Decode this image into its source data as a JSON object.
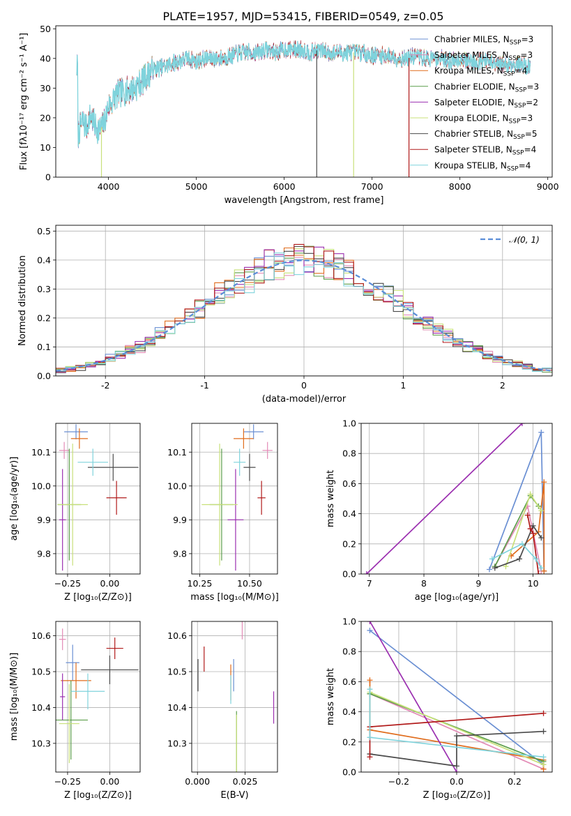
{
  "figure": {
    "title": "PLATE=1957, MJD=53415, FIBERID=0549, z=0.05"
  },
  "legend": [
    {
      "id": "chabrier_miles",
      "label": "Chabrier MILES, N",
      "sub": "SSP",
      "suffix": "=3",
      "color": "#6a8fd3"
    },
    {
      "id": "salpeter_miles",
      "label": "Salpeter MILES, N",
      "sub": "SSP",
      "suffix": "=3",
      "color": "#e38bb6"
    },
    {
      "id": "kroupa_miles",
      "label": "Kroupa MILES, N",
      "sub": "SSP",
      "suffix": "=4",
      "color": "#e06c1c"
    },
    {
      "id": "chabrier_elodie",
      "label": "Chabrier ELODIE, N",
      "sub": "SSP",
      "suffix": "=3",
      "color": "#5c9e4a"
    },
    {
      "id": "salpeter_elodie",
      "label": "Salpeter ELODIE, N",
      "sub": "SSP",
      "suffix": "=2",
      "color": "#9b2fb0"
    },
    {
      "id": "kroupa_elodie",
      "label": "Kroupa ELODIE, N",
      "sub": "SSP",
      "suffix": "=3",
      "color": "#c8e07a"
    },
    {
      "id": "chabrier_stelib",
      "label": "Chabrier STELIB, N",
      "sub": "SSP",
      "suffix": "=5",
      "color": "#4a4a4a"
    },
    {
      "id": "salpeter_stelib",
      "label": "Salpeter STELIB, N",
      "sub": "SSP",
      "suffix": "=4",
      "color": "#b11a1a"
    },
    {
      "id": "kroupa_stelib",
      "label": "Kroupa STELIB, N",
      "sub": "SSP",
      "suffix": "=4",
      "color": "#7fd3dc"
    }
  ],
  "chart_data": [
    {
      "id": "spectrum",
      "type": "line",
      "xlabel": "wavelength [Angstrom, rest frame]",
      "ylabel": "Flux [fλ10⁻¹⁷ erg cm⁻² s⁻¹ A⁻¹]",
      "xlim": [
        3400,
        9050
      ],
      "ylim": [
        0,
        51
      ],
      "xticks": [
        4000,
        5000,
        6000,
        7000,
        8000,
        9000
      ],
      "yticks": [
        0,
        10,
        20,
        30,
        40,
        50
      ],
      "continuum": [
        [
          3650,
          14
        ],
        [
          3700,
          19
        ],
        [
          3750,
          17
        ],
        [
          3800,
          21
        ],
        [
          3850,
          17
        ],
        [
          3900,
          16
        ],
        [
          3950,
          18
        ],
        [
          4000,
          24
        ],
        [
          4050,
          26
        ],
        [
          4100,
          28
        ],
        [
          4200,
          29
        ],
        [
          4300,
          30
        ],
        [
          4400,
          33
        ],
        [
          4500,
          36
        ],
        [
          4600,
          37
        ],
        [
          4700,
          38
        ],
        [
          4800,
          39
        ],
        [
          4900,
          40
        ],
        [
          5000,
          39
        ],
        [
          5100,
          40
        ],
        [
          5200,
          40
        ],
        [
          5300,
          40
        ],
        [
          5400,
          41
        ],
        [
          5500,
          42
        ],
        [
          5600,
          42
        ],
        [
          5700,
          42
        ],
        [
          5800,
          43
        ],
        [
          5900,
          42
        ],
        [
          6000,
          43
        ],
        [
          6100,
          43
        ],
        [
          6200,
          43
        ],
        [
          6300,
          42
        ],
        [
          6400,
          43
        ],
        [
          6500,
          42
        ],
        [
          6600,
          42
        ],
        [
          6700,
          42
        ],
        [
          6800,
          42
        ],
        [
          6900,
          42
        ],
        [
          7000,
          41
        ],
        [
          7100,
          41
        ],
        [
          7200,
          41
        ],
        [
          7300,
          40
        ],
        [
          7400,
          40
        ],
        [
          7500,
          41
        ],
        [
          7600,
          40
        ],
        [
          7700,
          40
        ],
        [
          7800,
          40
        ],
        [
          7900,
          39
        ],
        [
          8000,
          40
        ],
        [
          8100,
          39
        ],
        [
          8200,
          39
        ],
        [
          8300,
          39
        ],
        [
          8400,
          38
        ],
        [
          8500,
          38
        ],
        [
          8600,
          38
        ],
        [
          8700,
          38
        ],
        [
          8800,
          37
        ]
      ],
      "dropouts": [
        {
          "x": 3920,
          "series": "kroupa_elodie"
        },
        {
          "x": 6370,
          "series": "chabrier_stelib"
        },
        {
          "x": 6790,
          "series": "kroupa_elodie"
        },
        {
          "x": 7420,
          "series": "salpeter_stelib"
        }
      ]
    },
    {
      "id": "residual-histogram",
      "type": "line",
      "xlabel": "(data-model)/error",
      "ylabel": "Normed distribution",
      "xlim": [
        -2.5,
        2.5
      ],
      "ylim": [
        0,
        0.52
      ],
      "xticks": [
        -2,
        -1,
        0,
        1,
        2
      ],
      "yticks": [
        0.0,
        0.1,
        0.2,
        0.3,
        0.4,
        0.5
      ],
      "reference_label": "𝒩(0, 1)",
      "reference_color": "#5b8ed8",
      "bin_width": 0.1,
      "histogram_centers": [
        -2.45,
        -2.35,
        -2.25,
        -2.15,
        -2.05,
        -1.95,
        -1.85,
        -1.75,
        -1.65,
        -1.55,
        -1.45,
        -1.35,
        -1.25,
        -1.15,
        -1.05,
        -0.95,
        -0.85,
        -0.75,
        -0.65,
        -0.55,
        -0.45,
        -0.35,
        -0.25,
        -0.15,
        -0.05,
        0.05,
        0.15,
        0.25,
        0.35,
        0.45,
        0.55,
        0.65,
        0.75,
        0.85,
        0.95,
        1.05,
        1.15,
        1.25,
        1.35,
        1.45,
        1.55,
        1.65,
        1.75,
        1.85,
        1.95,
        2.05,
        2.15,
        2.25,
        2.35,
        2.45
      ]
    },
    {
      "id": "age-vs-metallicity",
      "type": "scatter",
      "xlabel": "Z [log₁₀(Z/Z⊙)]",
      "ylabel": "age  [log₁₀(age/yr)]",
      "xlim": [
        -0.32,
        0.18
      ],
      "ylim": [
        9.74,
        10.185
      ],
      "xticks": [
        -0.25,
        0.0
      ],
      "xtick_labels": [
        "−0.25",
        "0.00"
      ],
      "yticks": [
        9.8,
        9.9,
        10.0,
        10.1
      ],
      "points": [
        {
          "series": "chabrier_miles",
          "x": -0.2,
          "y": 10.16,
          "xerr": 0.07,
          "yerr": 0.022
        },
        {
          "series": "salpeter_miles",
          "x": -0.27,
          "y": 10.105,
          "xerr": 0.03,
          "yerr": 0.025
        },
        {
          "series": "kroupa_miles",
          "x": -0.18,
          "y": 10.14,
          "xerr": 0.05,
          "yerr": 0.03
        },
        {
          "series": "chabrier_elodie",
          "x": -0.24,
          "y": 9.945,
          "xerr": 0.07,
          "yerr": 0.165
        },
        {
          "series": "salpeter_elodie",
          "x": -0.28,
          "y": 9.9,
          "xerr": 0.02,
          "yerr": 0.15
        },
        {
          "series": "kroupa_elodie",
          "x": -0.22,
          "y": 9.945,
          "xerr": 0.09,
          "yerr": 0.18
        },
        {
          "series": "chabrier_stelib",
          "x": 0.02,
          "y": 10.055,
          "xerr": 0.15,
          "yerr": 0.04
        },
        {
          "series": "salpeter_stelib",
          "x": 0.04,
          "y": 9.965,
          "xerr": 0.06,
          "yerr": 0.05
        },
        {
          "series": "kroupa_stelib",
          "x": -0.1,
          "y": 10.07,
          "xerr": 0.09,
          "yerr": 0.04
        }
      ]
    },
    {
      "id": "age-vs-mass",
      "type": "scatter",
      "xlabel": "mass [log₁₀(M/M⊙)]",
      "ylabel": "",
      "xlim": [
        10.21,
        10.64
      ],
      "ylim": [
        9.74,
        10.185
      ],
      "xticks": [
        10.25,
        10.5
      ],
      "xtick_labels": [
        "10.25",
        "10.50"
      ],
      "yticks": [
        9.8,
        9.9,
        10.0,
        10.1
      ],
      "points": [
        {
          "series": "chabrier_miles",
          "x": 10.52,
          "y": 10.16,
          "xerr": 0.05,
          "yerr": 0.022
        },
        {
          "series": "salpeter_miles",
          "x": 10.59,
          "y": 10.105,
          "xerr": 0.025,
          "yerr": 0.025
        },
        {
          "series": "kroupa_miles",
          "x": 10.47,
          "y": 10.14,
          "xerr": 0.05,
          "yerr": 0.03
        },
        {
          "series": "chabrier_elodie",
          "x": 10.36,
          "y": 9.945,
          "xerr": 0.06,
          "yerr": 0.165
        },
        {
          "series": "salpeter_elodie",
          "x": 10.43,
          "y": 9.9,
          "xerr": 0.04,
          "yerr": 0.15
        },
        {
          "series": "kroupa_elodie",
          "x": 10.35,
          "y": 9.945,
          "xerr": 0.09,
          "yerr": 0.18
        },
        {
          "series": "chabrier_stelib",
          "x": 10.5,
          "y": 10.055,
          "xerr": 0.03,
          "yerr": 0.04
        },
        {
          "series": "salpeter_stelib",
          "x": 10.56,
          "y": 9.965,
          "xerr": 0.02,
          "yerr": 0.05
        },
        {
          "series": "kroupa_stelib",
          "x": 10.45,
          "y": 10.07,
          "xerr": 0.03,
          "yerr": 0.04
        }
      ]
    },
    {
      "id": "mass-weight-vs-age",
      "type": "line",
      "xlabel": "age  [log₁₀(age/yr)]",
      "ylabel": "mass weight",
      "xlim": [
        6.85,
        10.35
      ],
      "ylim": [
        0,
        1
      ],
      "xticks": [
        7,
        8,
        9,
        10
      ],
      "yticks": [
        0.0,
        0.2,
        0.4,
        0.6,
        0.8,
        1.0
      ],
      "series": [
        {
          "series": "chabrier_miles",
          "points": [
            [
              9.2,
              0.03
            ],
            [
              10.15,
              0.94
            ],
            [
              10.2,
              0.02
            ]
          ]
        },
        {
          "series": "salpeter_miles",
          "points": [
            [
              9.3,
              0.05
            ],
            [
              9.9,
              0.45
            ],
            [
              10.15,
              0.02
            ]
          ]
        },
        {
          "series": "kroupa_miles",
          "points": [
            [
              9.6,
              0.12
            ],
            [
              10.1,
              0.28
            ],
            [
              10.2,
              0.61
            ],
            [
              10.2,
              0.02
            ]
          ]
        },
        {
          "series": "chabrier_elodie",
          "points": [
            [
              9.3,
              0.05
            ],
            [
              9.95,
              0.52
            ],
            [
              10.1,
              0.45
            ]
          ]
        },
        {
          "series": "salpeter_elodie",
          "points": [
            [
              6.95,
              0.0
            ],
            [
              9.8,
              1.0
            ]
          ]
        },
        {
          "series": "kroupa_elodie",
          "points": [
            [
              9.5,
              0.05
            ],
            [
              9.95,
              0.53
            ],
            [
              10.15,
              0.42
            ]
          ]
        },
        {
          "series": "chabrier_stelib",
          "points": [
            [
              9.3,
              0.04
            ],
            [
              9.75,
              0.1
            ],
            [
              10.0,
              0.32
            ],
            [
              10.15,
              0.24
            ]
          ]
        },
        {
          "series": "salpeter_stelib",
          "points": [
            [
              9.9,
              0.39
            ],
            [
              9.95,
              0.3
            ],
            [
              10.0,
              0.27
            ],
            [
              10.1,
              0.0
            ]
          ]
        },
        {
          "series": "kroupa_stelib",
          "points": [
            [
              9.25,
              0.1
            ],
            [
              9.8,
              0.2
            ],
            [
              10.05,
              0.1
            ],
            [
              10.15,
              0.04
            ]
          ]
        }
      ]
    },
    {
      "id": "mass-vs-metallicity",
      "type": "scatter",
      "xlabel": "Z [log₁₀(Z/Z⊙)]",
      "ylabel": "mass [log₁₀(M/M⊙)]",
      "xlim": [
        -0.32,
        0.18
      ],
      "ylim": [
        10.22,
        10.64
      ],
      "xticks": [
        -0.25,
        0.0
      ],
      "xtick_labels": [
        "−0.25",
        "0.00"
      ],
      "yticks": [
        10.3,
        10.4,
        10.5,
        10.6
      ],
      "points": [
        {
          "series": "chabrier_miles",
          "x": -0.22,
          "y": 10.525,
          "xerr": 0.04,
          "yerr": 0.05
        },
        {
          "series": "salpeter_miles",
          "x": -0.28,
          "y": 10.59,
          "xerr": 0.02,
          "yerr": 0.03
        },
        {
          "series": "kroupa_miles",
          "x": -0.2,
          "y": 10.475,
          "xerr": 0.09,
          "yerr": 0.05
        },
        {
          "series": "chabrier_elodie",
          "x": -0.23,
          "y": 10.365,
          "xerr": 0.1,
          "yerr": 0.11
        },
        {
          "series": "salpeter_elodie",
          "x": -0.28,
          "y": 10.43,
          "xerr": 0.015,
          "yerr": 0.065
        },
        {
          "series": "kroupa_elodie",
          "x": -0.24,
          "y": 10.355,
          "xerr": 0.06,
          "yerr": 0.11
        },
        {
          "series": "chabrier_stelib",
          "x": 0.0,
          "y": 10.505,
          "xerr": 0.17,
          "yerr": 0.04
        },
        {
          "series": "salpeter_stelib",
          "x": 0.03,
          "y": 10.565,
          "xerr": 0.05,
          "yerr": 0.03
        },
        {
          "series": "kroupa_stelib",
          "x": -0.13,
          "y": 10.445,
          "xerr": 0.1,
          "yerr": 0.05
        }
      ]
    },
    {
      "id": "mass-vs-extinction",
      "type": "scatter",
      "xlabel": "E(B-V)",
      "ylabel": "",
      "xlim": [
        -0.003,
        0.042
      ],
      "ylim": [
        10.22,
        10.64
      ],
      "xticks": [
        0.0,
        0.025
      ],
      "xtick_labels": [
        "0.000",
        "0.025"
      ],
      "yticks": [
        10.3,
        10.4,
        10.5,
        10.6
      ],
      "points": [
        {
          "series": "chabrier_miles",
          "x": 0.019,
          "y": 10.49,
          "yerr": 0.045
        },
        {
          "series": "salpeter_miles",
          "x": 0.0235,
          "y": 10.62,
          "yerr": 0.03
        },
        {
          "series": "kroupa_miles",
          "x": 0.0175,
          "y": 10.47,
          "yerr": 0.05
        },
        {
          "series": "chabrier_elodie",
          "x": 0.0205,
          "y": 10.3,
          "yerr": 0.09
        },
        {
          "series": "salpeter_elodie",
          "x": 0.04,
          "y": 10.4,
          "yerr": 0.045
        },
        {
          "series": "kroupa_elodie",
          "x": 0.0205,
          "y": 10.3,
          "yerr": 0.08
        },
        {
          "series": "chabrier_stelib",
          "x": 0.0003,
          "y": 10.49,
          "yerr": 0.045
        },
        {
          "series": "salpeter_stelib",
          "x": 0.0035,
          "y": 10.535,
          "yerr": 0.035
        },
        {
          "series": "kroupa_stelib",
          "x": 0.0175,
          "y": 10.45,
          "yerr": 0.04
        }
      ]
    },
    {
      "id": "mass-weight-vs-metallicity",
      "type": "line",
      "xlabel": "Z [log₁₀(Z/Z⊙)]",
      "ylabel": "mass weight",
      "xlim": [
        -0.33,
        0.33
      ],
      "ylim": [
        0,
        1
      ],
      "xticks": [
        -0.2,
        0.0,
        0.2
      ],
      "xtick_labels": [
        "−0.2",
        "0.0",
        "0.2"
      ],
      "yticks": [
        0.0,
        0.2,
        0.4,
        0.6,
        0.8,
        1.0
      ],
      "series": [
        {
          "series": "chabrier_miles",
          "points": [
            [
              -0.3,
              0.94
            ],
            [
              0.3,
              0.05
            ]
          ]
        },
        {
          "series": "salpeter_miles",
          "points": [
            [
              -0.3,
              0.52
            ],
            [
              0.3,
              0.02
            ]
          ]
        },
        {
          "series": "kroupa_miles",
          "points": [
            [
              -0.3,
              0.61
            ],
            [
              -0.3,
              0.28
            ],
            [
              0.3,
              0.08
            ],
            [
              0.3,
              0.02
            ]
          ]
        },
        {
          "series": "chabrier_elodie",
          "points": [
            [
              -0.3,
              0.52
            ],
            [
              0.3,
              0.07
            ]
          ]
        },
        {
          "series": "salpeter_elodie",
          "points": [
            [
              -0.3,
              1.0
            ],
            [
              0.0,
              0.0
            ]
          ]
        },
        {
          "series": "kroupa_elodie",
          "points": [
            [
              -0.3,
              0.53
            ],
            [
              0.3,
              0.05
            ]
          ]
        },
        {
          "series": "chabrier_stelib",
          "points": [
            [
              -0.3,
              0.12
            ],
            [
              0.0,
              0.04
            ],
            [
              0.0,
              0.24
            ],
            [
              0.3,
              0.27
            ]
          ]
        },
        {
          "series": "salpeter_stelib",
          "points": [
            [
              -0.3,
              0.1
            ],
            [
              -0.3,
              0.3
            ],
            [
              0.3,
              0.39
            ]
          ]
        },
        {
          "series": "kroupa_stelib",
          "points": [
            [
              -0.3,
              0.55
            ],
            [
              -0.3,
              0.23
            ],
            [
              0.3,
              0.1
            ]
          ]
        }
      ]
    }
  ]
}
